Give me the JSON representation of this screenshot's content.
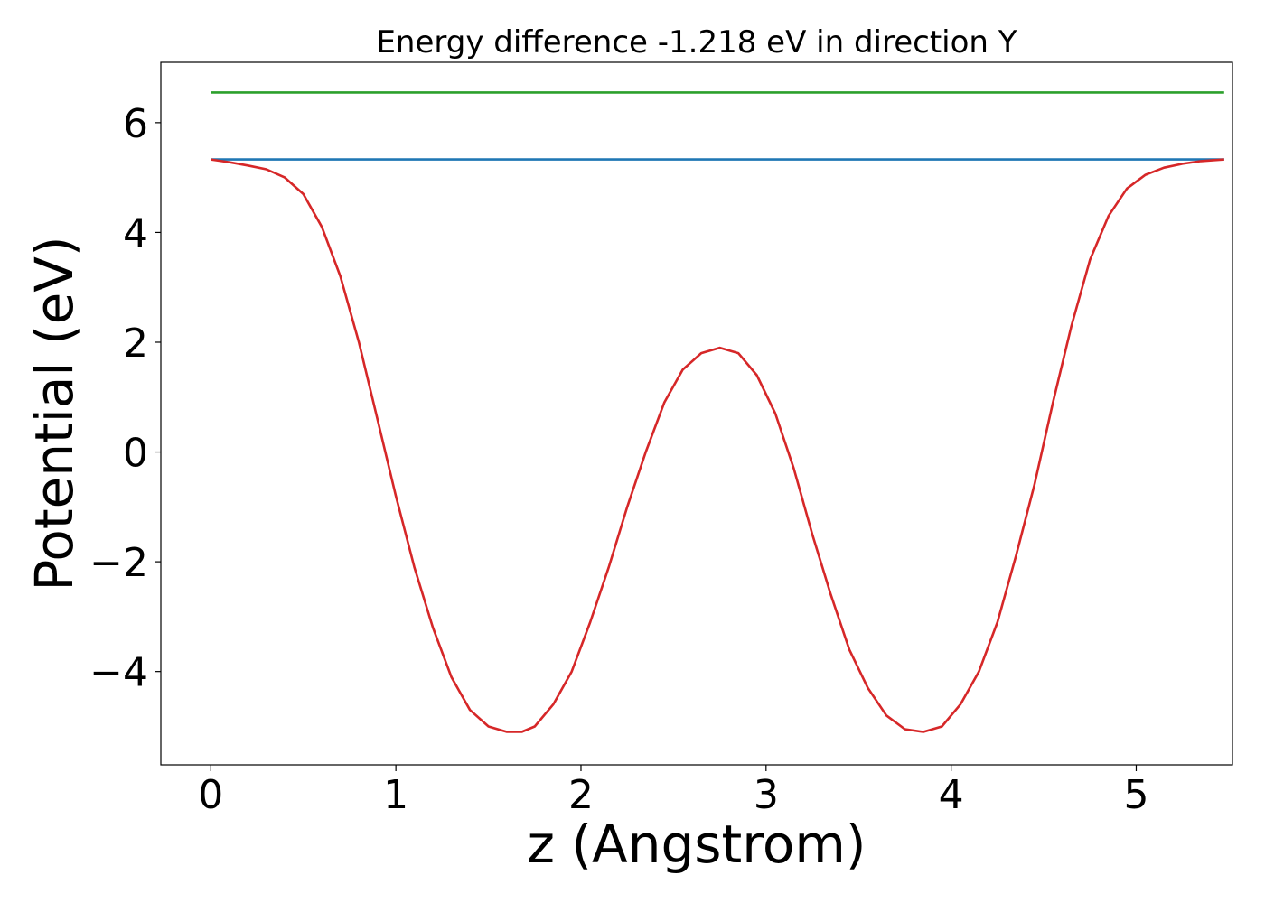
{
  "chart_data": {
    "type": "line",
    "title": "Energy difference -1.218 eV in direction Y",
    "xlabel": "z (Angstrom)",
    "ylabel": "Potential (eV)",
    "xlim": [
      -0.27,
      5.52
    ],
    "ylim": [
      -5.7,
      7.1
    ],
    "xticks": [
      0,
      1,
      2,
      3,
      4,
      5
    ],
    "xtick_labels": [
      "0",
      "1",
      "2",
      "3",
      "4",
      "5"
    ],
    "yticks": [
      -4,
      -2,
      0,
      2,
      4,
      6
    ],
    "ytick_labels": [
      "−4",
      "−2",
      "0",
      "2",
      "4",
      "6"
    ],
    "grid": false,
    "legend": "none",
    "series": [
      {
        "color": "#2ca02c",
        "x": [
          0,
          5.475
        ],
        "y": [
          6.55,
          6.55
        ]
      },
      {
        "color": "#1f77b4",
        "x": [
          0,
          5.475
        ],
        "y": [
          5.33,
          5.33
        ]
      },
      {
        "color": "#d62728",
        "x": [
          0,
          0.1,
          0.2,
          0.3,
          0.4,
          0.5,
          0.6,
          0.7,
          0.8,
          0.9,
          1.0,
          1.1,
          1.2,
          1.3,
          1.4,
          1.5,
          1.6,
          1.68,
          1.75,
          1.85,
          1.95,
          2.05,
          2.15,
          2.25,
          2.35,
          2.45,
          2.55,
          2.65,
          2.75,
          2.85,
          2.95,
          3.05,
          3.15,
          3.25,
          3.35,
          3.45,
          3.55,
          3.65,
          3.75,
          3.85,
          3.95,
          4.05,
          4.15,
          4.25,
          4.35,
          4.45,
          4.55,
          4.65,
          4.75,
          4.85,
          4.95,
          5.05,
          5.15,
          5.25,
          5.35,
          5.475
        ],
        "y": [
          5.33,
          5.28,
          5.22,
          5.15,
          5.0,
          4.7,
          4.1,
          3.2,
          2.0,
          0.6,
          -0.8,
          -2.1,
          -3.2,
          -4.1,
          -4.7,
          -5.0,
          -5.1,
          -5.1,
          -5.0,
          -4.6,
          -4.0,
          -3.1,
          -2.1,
          -1.0,
          0.0,
          0.9,
          1.5,
          1.8,
          1.9,
          1.8,
          1.4,
          0.7,
          -0.3,
          -1.5,
          -2.6,
          -3.6,
          -4.3,
          -4.8,
          -5.05,
          -5.1,
          -5.0,
          -4.6,
          -4.0,
          -3.1,
          -1.9,
          -0.6,
          0.9,
          2.3,
          3.5,
          4.3,
          4.8,
          5.05,
          5.18,
          5.25,
          5.3,
          5.33
        ]
      }
    ]
  }
}
